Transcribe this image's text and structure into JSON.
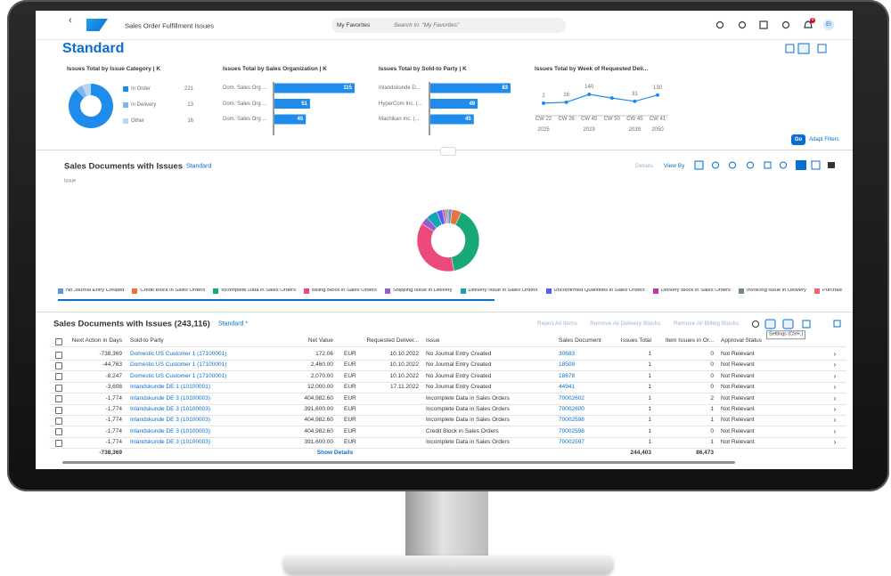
{
  "shell": {
    "app_title": "Sales Order Fulfillment Issues",
    "favorites": "My Favorites",
    "search_placeholder": "Search In: \"My Favorites\"",
    "notification_count": "4",
    "avatar": "EI"
  },
  "variant": "Standard",
  "filter_cards": [
    {
      "title": "Issues Total by Issue Category | K",
      "type": "donut",
      "categories": [
        "In Order",
        "In Delivery",
        "Other"
      ],
      "values": [
        221,
        13,
        16
      ],
      "colors": [
        "#1f8ceb",
        "#7fb8f0",
        "#b7d7f5"
      ]
    },
    {
      "title": "Issues Total by Sales Organization | K",
      "type": "bar",
      "categories": [
        "Dom. Sales Org ...",
        "Dom. Sales Org ...",
        "Dom. Sales Org ..."
      ],
      "values": [
        115,
        51,
        45
      ],
      "color": "#1f8ceb"
    },
    {
      "title": "Issues Total by Sold-to Party | K",
      "type": "bar",
      "categories": [
        "Inlandskunde D...",
        "HyperCom Inc. (...",
        "Machikan Inc. (..."
      ],
      "values": [
        83,
        49,
        45
      ],
      "color": "#1f8ceb"
    },
    {
      "title": "Issues Total by Week of Requested Deli...",
      "type": "line",
      "categories": [
        "CW 22",
        "CW 26",
        "CW 45",
        "CW 50",
        "CW 45",
        "CW 41"
      ],
      "years": [
        "2025",
        null,
        "2029",
        null,
        "2039",
        "2050"
      ],
      "values": [
        2,
        16,
        140,
        82,
        31,
        130
      ],
      "value_labels": [
        "2",
        "16",
        "140",
        null,
        "31",
        "130"
      ],
      "color": "#1f8ceb"
    }
  ],
  "go": "Go",
  "adapt_filters": "Adapt Filters",
  "chart_card": {
    "title": "Sales Documents with Issues",
    "variant": "Standard",
    "details": "Details",
    "view_by": "View By",
    "axis_label": "Issue",
    "type": "donut",
    "series": [
      {
        "name": "No Journal Entry Created",
        "color": "#5899da",
        "value": 2
      },
      {
        "name": "Credit Block in Sales Orders",
        "color": "#e8743b",
        "value": 5
      },
      {
        "name": "Incomplete Data in Sales Orders",
        "color": "#19a979",
        "value": 40
      },
      {
        "name": "Billing Block in Sales Orders",
        "color": "#ed4a7b",
        "value": 37
      },
      {
        "name": "Shipping Issue in Delivery",
        "color": "#945ecf",
        "value": 4
      },
      {
        "name": "Delivery Issue in Sales Orders",
        "color": "#13a4b4",
        "value": 6
      },
      {
        "name": "Unconfirmed Quantities in Sales Orders",
        "color": "#525df4",
        "value": 3
      },
      {
        "name": "Delivery Block in Sales Orders",
        "color": "#bf399e",
        "value": 1
      },
      {
        "name": "Invoicing Issue in Delivery",
        "color": "#6c8893",
        "value": 1
      },
      {
        "name": "Purchasing Issue",
        "color": "#ee6868",
        "value": 1
      }
    ]
  },
  "table": {
    "title": "Sales Documents with Issues (243,116)",
    "variant": "Standard *",
    "actions": [
      "Reject All Items",
      "Remove All Delivery Blocks",
      "Remove All Billing Blocks"
    ],
    "tooltip": "Settings (Ctrl+,)",
    "columns": [
      "Next Action in Days",
      "Sold-to Party",
      "Net Value",
      "Requested Deliver...",
      "Issue",
      "Sales Document",
      "Issues Total",
      "Item Issues in Or...",
      "Approval Status"
    ],
    "rows": [
      [
        "-738,369",
        "Domestic US Customer 1 (17100001)",
        "172.06",
        "EUR",
        "10.10.2022",
        "No Journal Entry Created",
        "30683",
        "1",
        "0",
        "Not Relevant"
      ],
      [
        "-44,763",
        "Domestic US Customer 1 (17100001)",
        "2,460.00",
        "EUR",
        "10.10.2022",
        "No Journal Entry Created",
        "18509",
        "1",
        "0",
        "Not Relevant"
      ],
      [
        "-8,247",
        "Domestic US Customer 1 (17100001)",
        "2,070.00",
        "EUR",
        "10.10.2022",
        "No Journal Entry Created",
        "18678",
        "1",
        "0",
        "Not Relevant"
      ],
      [
        "-3,608",
        "Inlandskunde DE 1 (10100001)",
        "12,000.00",
        "EUR",
        "17.11.2022",
        "No Journal Entry Created",
        "44941",
        "1",
        "0",
        "Not Relevant"
      ],
      [
        "-1,774",
        "Inlandskunde DE 3 (10100003)",
        "404,982.60",
        "EUR",
        "",
        "Incomplete Data in Sales Orders",
        "70002602",
        "1",
        "2",
        "Not Relevant"
      ],
      [
        "-1,774",
        "Inlandskunde DE 3 (10100003)",
        "391,600.00",
        "EUR",
        "",
        "Incomplete Data in Sales Orders",
        "70002600",
        "1",
        "1",
        "Not Relevant"
      ],
      [
        "-1,774",
        "Inlandskunde DE 3 (10100003)",
        "404,982.60",
        "EUR",
        "",
        "Incomplete Data in Sales Orders",
        "70002598",
        "1",
        "1",
        "Not Relevant"
      ],
      [
        "-1,774",
        "Inlandskunde DE 3 (10100003)",
        "404,982.60",
        "EUR",
        "",
        "Credit Block in Sales Orders",
        "70002598",
        "1",
        "0",
        "Not Relevant"
      ],
      [
        "-1,774",
        "Inlandskunde DE 3 (10100003)",
        "391,600.00",
        "EUR",
        "",
        "Incomplete Data in Sales Orders",
        "70002597",
        "1",
        "1",
        "Not Relevant"
      ]
    ],
    "footer": {
      "next_action": "-738,369",
      "show_details": "Show Details",
      "issues_total": "244,403",
      "item_issues": "86,473"
    }
  }
}
